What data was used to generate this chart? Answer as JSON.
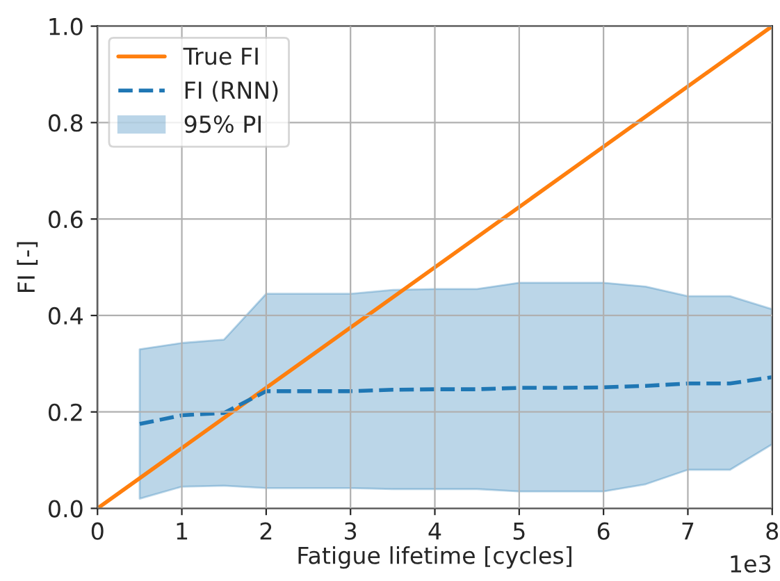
{
  "chart_data": {
    "type": "line",
    "xlabel": "Fatigue lifetime [cycles]",
    "ylabel": "FI [-]",
    "xlim": [
      0,
      8
    ],
    "ylim": [
      0,
      1
    ],
    "xticks": [
      0,
      1,
      2,
      3,
      4,
      5,
      6,
      7,
      8
    ],
    "yticks": [
      {
        "value": 0,
        "label": "0.0"
      },
      0.2,
      0.4,
      0.6,
      0.8,
      {
        "value": 1,
        "label": "1.0"
      }
    ],
    "grid": true,
    "legend": "top left",
    "annotations": [
      "1e3"
    ],
    "series": [
      {
        "name": "True FI",
        "color": "#ff7f0e",
        "line_style": "solid",
        "x": [
          0,
          8
        ],
        "values": [
          0,
          1
        ]
      },
      {
        "name": "FI (RNN)",
        "color": "#1f77b4",
        "line_style": "dashed",
        "x": [
          0.5,
          1,
          1.5,
          2,
          2.5,
          3,
          3.5,
          4,
          4.5,
          5,
          5.5,
          6,
          6.5,
          7,
          7.5,
          8
        ],
        "values": [
          0.175,
          0.193,
          0.198,
          0.243,
          0.243,
          0.243,
          0.246,
          0.247,
          0.247,
          0.25,
          0.25,
          0.251,
          0.254,
          0.259,
          0.259,
          0.272
        ],
        "lower": [
          0.02,
          0.045,
          0.047,
          0.042,
          0.042,
          0.042,
          0.04,
          0.04,
          0.04,
          0.035,
          0.035,
          0.035,
          0.05,
          0.08,
          0.08,
          0.133
        ],
        "upper": [
          0.33,
          0.343,
          0.35,
          0.445,
          0.445,
          0.445,
          0.453,
          0.455,
          0.455,
          0.468,
          0.468,
          0.468,
          0.46,
          0.44,
          0.44,
          0.413
        ]
      },
      {
        "name": "95% PI",
        "type": "area",
        "color": "#1f77b4"
      }
    ]
  }
}
